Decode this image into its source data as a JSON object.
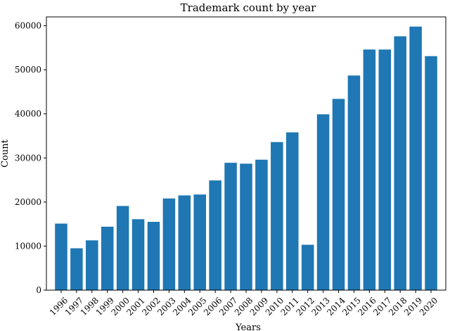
{
  "chart_data": {
    "type": "bar",
    "title": "Trademark count by year",
    "xlabel": "Years",
    "ylabel": "Count",
    "categories": [
      "1996",
      "1997",
      "1998",
      "1999",
      "2000",
      "2001",
      "2002",
      "2003",
      "2004",
      "2005",
      "2006",
      "2007",
      "2008",
      "2009",
      "2010",
      "2011",
      "2012",
      "2013",
      "2014",
      "2015",
      "2016",
      "2017",
      "2018",
      "2019",
      "2020"
    ],
    "values": [
      15100,
      9500,
      11300,
      14400,
      19100,
      16100,
      15500,
      20800,
      21500,
      21700,
      24900,
      28900,
      28700,
      29600,
      33600,
      35800,
      10300,
      39900,
      43400,
      48700,
      54600,
      54600,
      57600,
      59800,
      53100
    ],
    "ylim": [
      0,
      62000
    ],
    "yticks": [
      0,
      10000,
      20000,
      30000,
      40000,
      50000,
      60000
    ],
    "bar_color": "#1f77b4",
    "grid": false,
    "legend": false
  }
}
